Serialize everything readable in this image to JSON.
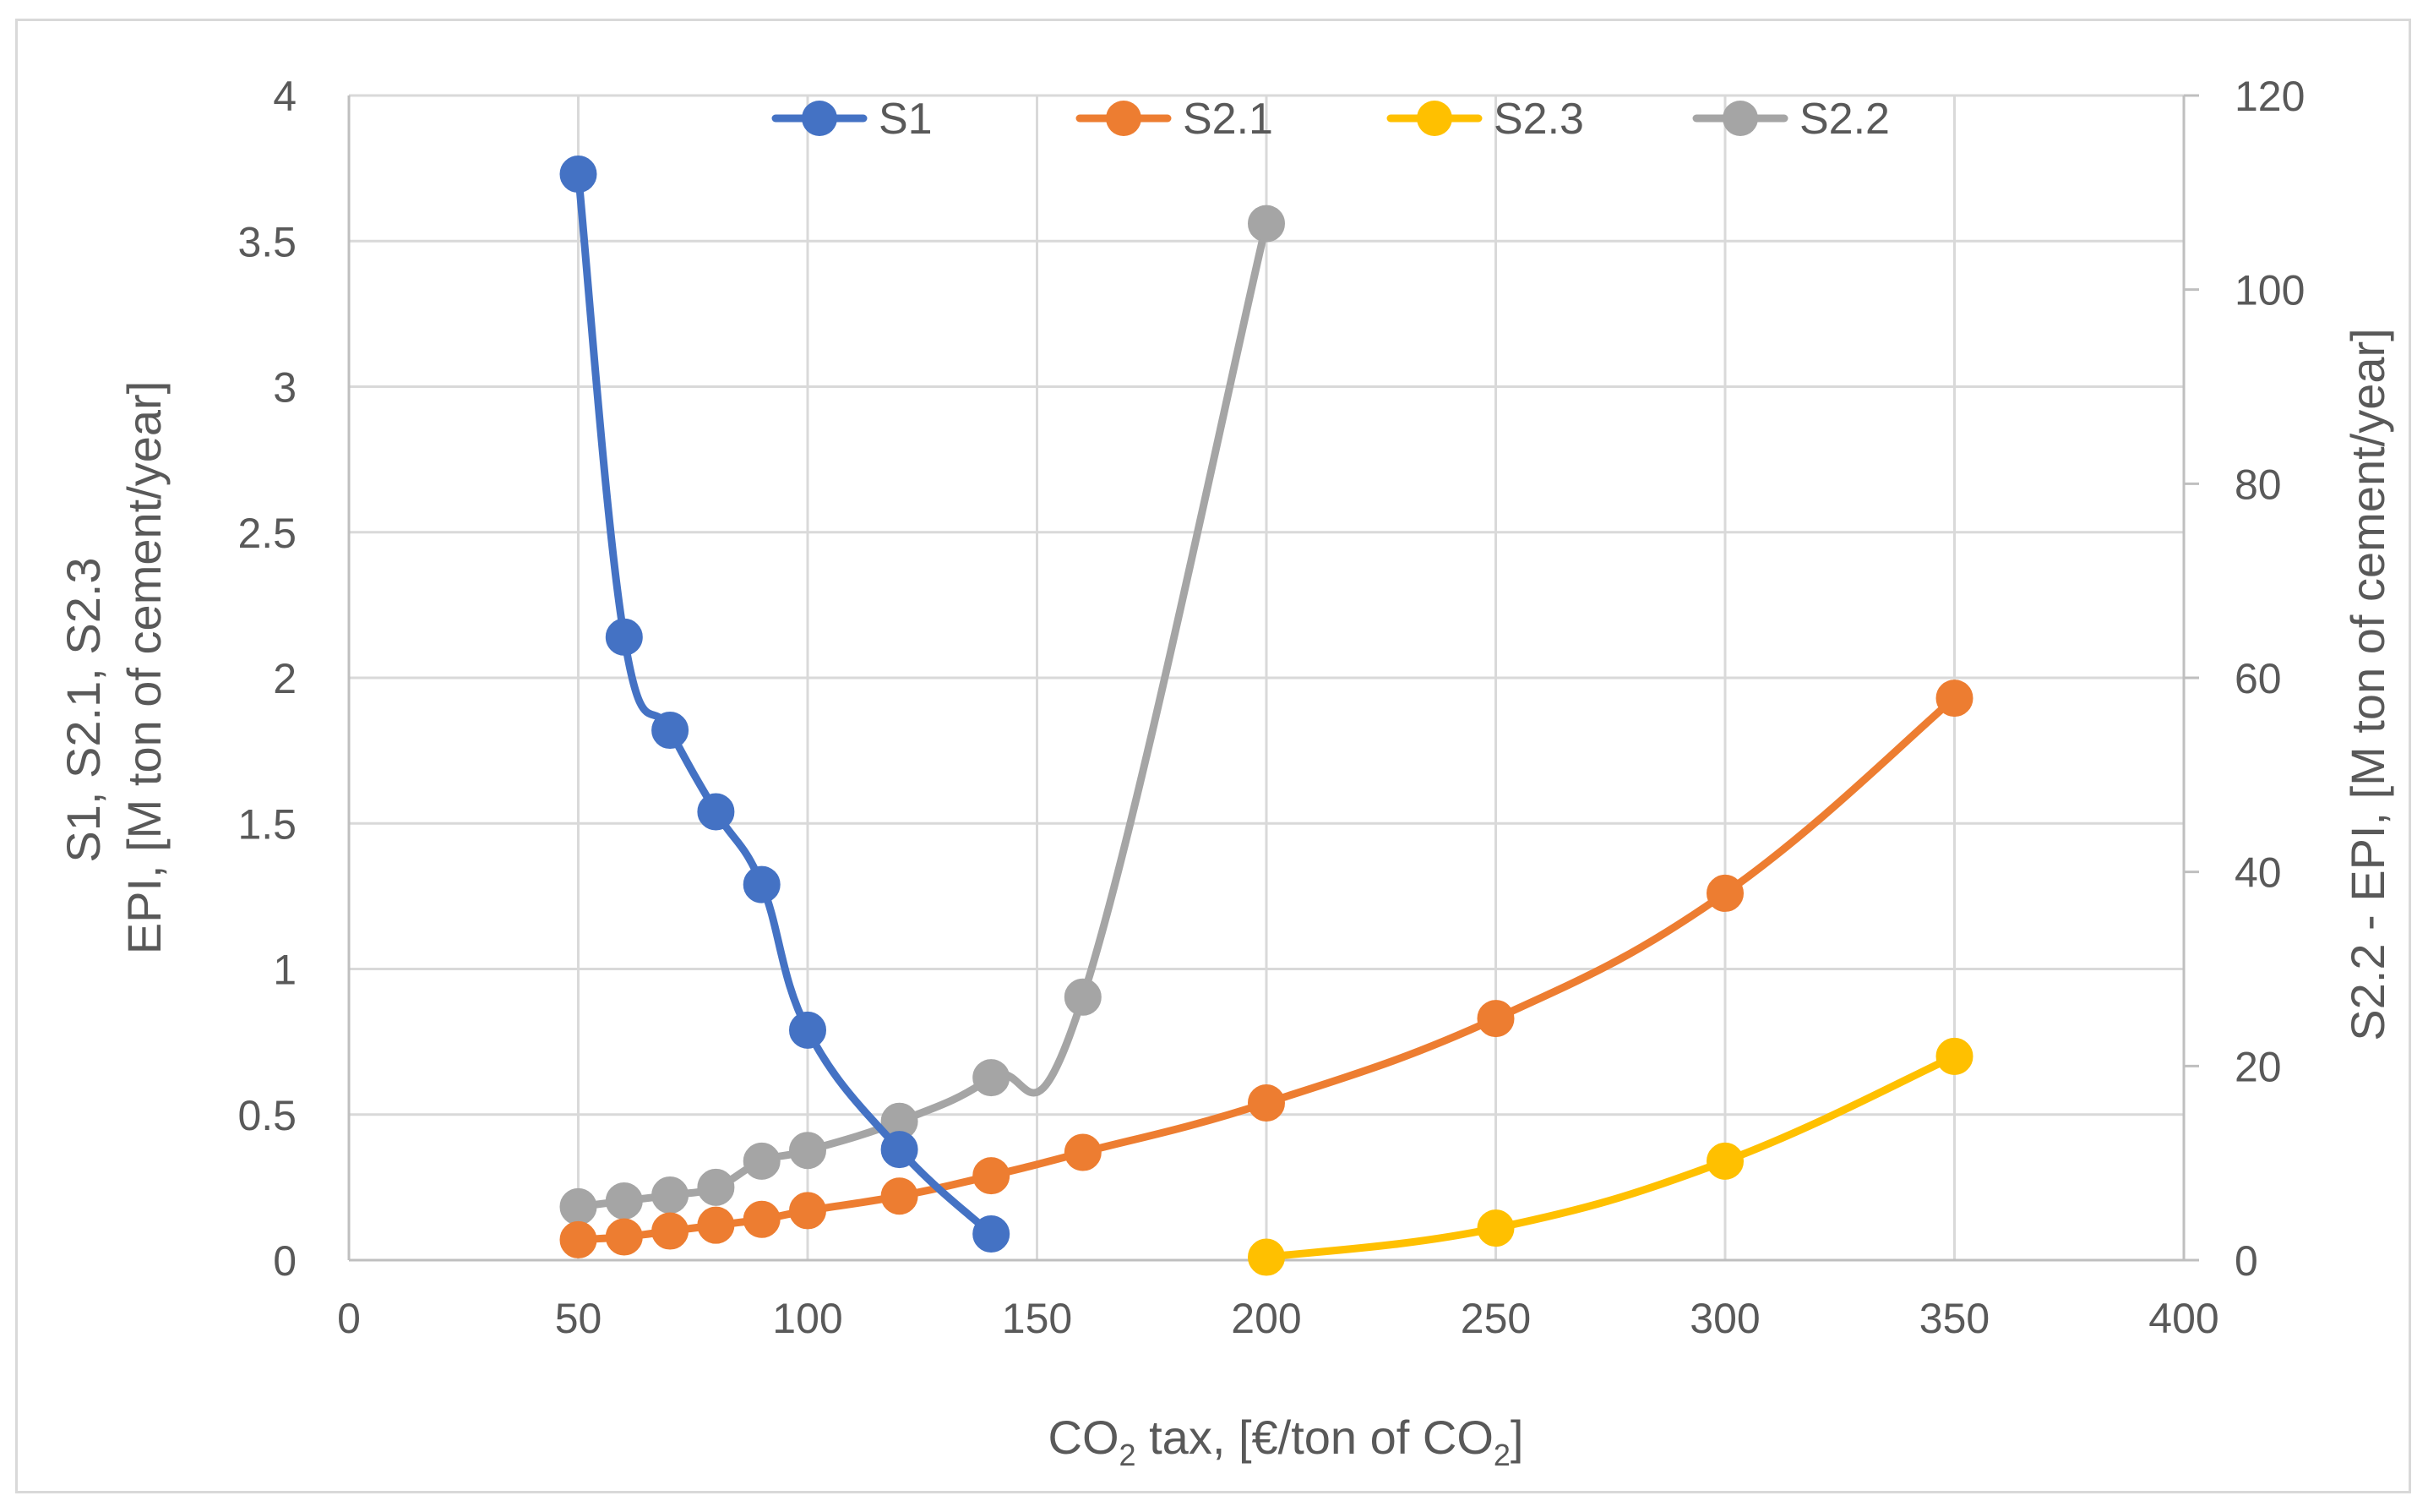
{
  "chart_data": {
    "type": "line",
    "title": "",
    "xlabel": {
      "main": "CO",
      "sub": "2",
      "rest": " tax, [€/ton of CO",
      "sub2": "2",
      "end": "]"
    },
    "ylabel_left": {
      "line1": "S1, S2.1, S2.3",
      "line2": "EPI, [M ton of cement/year]"
    },
    "ylabel_right": "S2.2 - EPI, [M ton of cement/year]",
    "xlim": [
      0,
      400
    ],
    "xticks": [
      0,
      50,
      100,
      150,
      200,
      250,
      300,
      350,
      400
    ],
    "ylim_left": [
      0,
      4
    ],
    "yticks_left": [
      0,
      0.5,
      1,
      1.5,
      2,
      2.5,
      3,
      3.5,
      4
    ],
    "ylim_right": [
      0,
      120
    ],
    "yticks_right": [
      0,
      20,
      40,
      60,
      80,
      100,
      120
    ],
    "grid": true,
    "legend_position": "top",
    "series": [
      {
        "name": "S1",
        "axis": "left",
        "color": "#4472c4",
        "x": [
          50,
          60,
          70,
          80,
          90,
          100,
          120,
          140
        ],
        "y": [
          3.73,
          2.14,
          1.82,
          1.54,
          1.29,
          0.79,
          0.38,
          0.09
        ]
      },
      {
        "name": "S2.1",
        "axis": "left",
        "color": "#ed7d31",
        "x": [
          50,
          60,
          70,
          80,
          90,
          100,
          120,
          140,
          160,
          200,
          250,
          300,
          350
        ],
        "y": [
          0.07,
          0.08,
          0.1,
          0.12,
          0.14,
          0.17,
          0.22,
          0.29,
          0.37,
          0.54,
          0.83,
          1.26,
          1.93
        ]
      },
      {
        "name": "S2.3",
        "axis": "left",
        "color": "#ffc000",
        "x": [
          200,
          250,
          300,
          350
        ],
        "y": [
          0.01,
          0.11,
          0.34,
          0.7
        ]
      },
      {
        "name": "S2.2",
        "axis": "right",
        "color": "#a5a5a5",
        "x": [
          50,
          60,
          70,
          80,
          90,
          100,
          120,
          140,
          160,
          200
        ],
        "y": [
          5.5,
          6.1,
          6.7,
          7.5,
          10.2,
          11.3,
          14.3,
          18.8,
          27.1,
          106.8
        ]
      }
    ],
    "legend_order": [
      "S1",
      "S2.1",
      "S2.3",
      "S2.2"
    ]
  }
}
